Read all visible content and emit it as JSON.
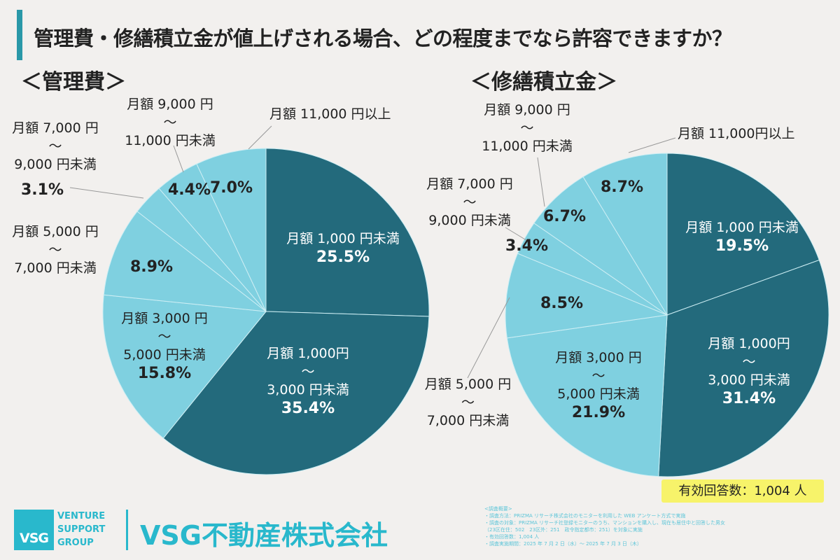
{
  "title": "管理費・修繕積立金が値上げされる場合、どの程度までなら許容できますか？",
  "colors": {
    "dark": "#236a7c",
    "light": "#7fd0e0",
    "accent": "#29b8cc",
    "background": "#f2f0ee"
  },
  "chart_data": [
    {
      "type": "pie",
      "title": "＜管理費＞",
      "categories": [
        "月額1,000円未満",
        "月額1,000円～3,000円未満",
        "月額3,000円～5,000円未満",
        "月額5,000円～7,000円未満",
        "月額7,000円～9,000円未満",
        "月額9,000円～11,000円未満",
        "月額11,000円以上"
      ],
      "values": [
        25.5,
        35.4,
        15.8,
        8.9,
        3.1,
        4.4,
        7.0
      ],
      "labels": {
        "c0": "月額 1,000 円未満",
        "c1a": "月額 1,000円",
        "c1b": "3,000 円未満",
        "c2a": "月額 3,000 円",
        "c2b": "5,000 円未満",
        "c3a": "月額 5,000 円",
        "c3b": "7,000 円未満",
        "c4a": "月額 7,000 円",
        "c4b": "9,000 円未満",
        "c5a": "月額 9,000 円",
        "c5b": "11,000 円未満",
        "c6": "月額 11,000 円以上",
        "tilde": "～"
      },
      "pct_labels": [
        "25.5%",
        "35.4%",
        "15.8%",
        "8.9%",
        "3.1%",
        "4.4%",
        "7.0%"
      ]
    },
    {
      "type": "pie",
      "title": "＜修繕積立金＞",
      "categories": [
        "月額1,000円未満",
        "月額1,000円～3,000円未満",
        "月額3,000円～5,000円未満",
        "月額5,000円～7,000円未満",
        "月額7,000円～9,000円未満",
        "月額9,000円～11,000円未満",
        "月額11,000円以上"
      ],
      "values": [
        19.5,
        31.4,
        21.9,
        8.5,
        3.4,
        6.7,
        8.7
      ],
      "labels": {
        "c0": "月額 1,000 円未満",
        "c1a": "月額 1,000円",
        "c1b": "3,000 円未満",
        "c2a": "月額 3,000 円",
        "c2b": "5,000 円未満",
        "c3a": "月額 5,000 円",
        "c3b": "7,000 円未満",
        "c4a": "月額 7,000 円",
        "c4b": "9,000 円未満",
        "c5a": "月額 9,000 円",
        "c5b": "11,000 円未満",
        "c6": "月額 11,000円以上",
        "tilde": "～"
      },
      "pct_labels": [
        "19.5%",
        "31.4%",
        "21.9%",
        "8.5%",
        "3.4%",
        "6.7%",
        "8.7%"
      ]
    }
  ],
  "responses": "有効回答数：1,004 人",
  "logo": {
    "mark": "VSG",
    "words": [
      "VENTURE",
      "SUPPORT",
      "GROUP"
    ]
  },
  "company": "VSG不動産株式会社",
  "notes": [
    "<調査概要>",
    "・調査方法：PRIZMA リサーチ株式会社のモニターを利用した WEB アンケート方式で実施",
    "・調査の対象：PRIZMA リサーチ社登録モニターのうち、マンションを購入し、現在も居住中と回答した男女",
    "（23区在住：502　23区外：251　政令指定都市：251）を対象に実施",
    "・有効回答数：1,004 人",
    "・調査実施期間：2025 年 7 月 2 日（水）～ 2025 年 7 月 3 日（木）"
  ]
}
